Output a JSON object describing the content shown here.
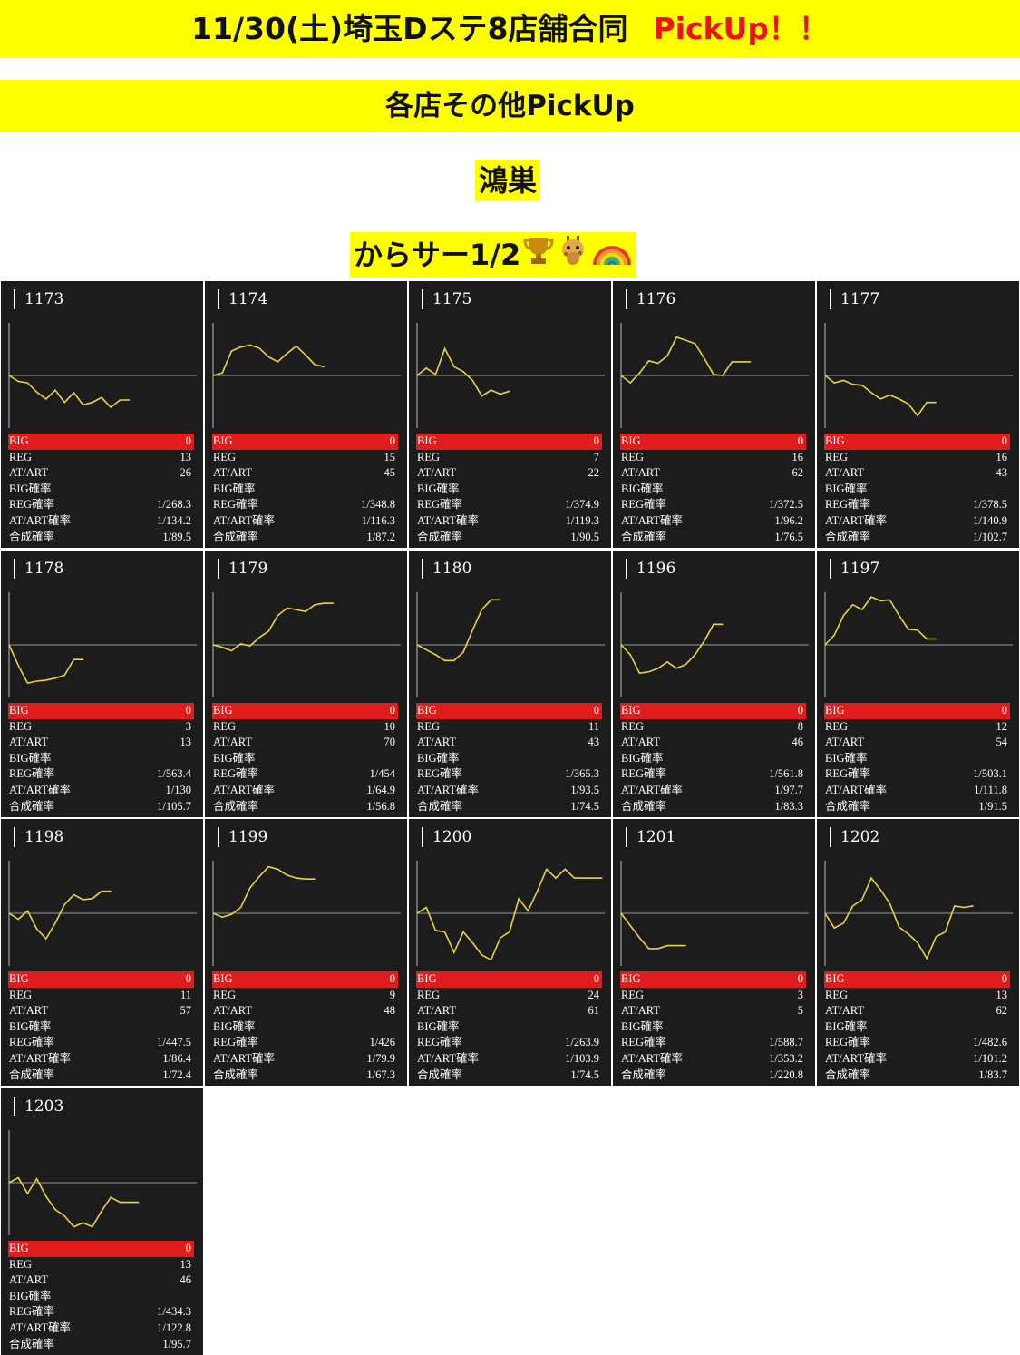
{
  "header": {
    "title": "11/30(土)埼玉Dステ8店舗合同",
    "pickup": "PickUp！！",
    "subtitle": "各店その他PickUp",
    "store": "鴻巣",
    "machine": "からサー1/2",
    "icons": [
      "trophy-icon",
      "giraffe-icon",
      "rainbow-icon"
    ]
  },
  "colors": {
    "banner": "#ffff00",
    "pickup": "#ee1111",
    "panel_bg": "#1c1c1c",
    "big_row": "#e01c1c",
    "line": "#e8d44a",
    "baseline": "#9a9a9a"
  },
  "labels": {
    "big": "BIG",
    "reg": "REG",
    "at": "AT/ART",
    "big_rate": "BIG確率",
    "reg_rate": "REG確率",
    "at_rate": "AT/ART確率",
    "total_rate": "合成確率"
  },
  "chart_data": [
    {
      "type": "line",
      "machine": "1173",
      "big": "0",
      "reg": "13",
      "at": "26",
      "big_rate": "",
      "reg_rate": "1/268.3",
      "at_rate": "1/134.2",
      "total_rate": "1/89.5",
      "ylim": [
        -1,
        1
      ],
      "x": [
        0,
        1,
        2,
        3,
        4,
        5,
        6,
        7,
        8,
        9,
        10,
        11,
        12,
        13
      ],
      "y": [
        0,
        -0.12,
        -0.15,
        -0.34,
        -0.48,
        -0.3,
        -0.55,
        -0.35,
        -0.6,
        -0.55,
        -0.45,
        -0.65,
        -0.5,
        -0.5
      ]
    },
    {
      "type": "line",
      "machine": "1174",
      "big": "0",
      "reg": "15",
      "at": "45",
      "big_rate": "",
      "reg_rate": "1/348.8",
      "at_rate": "1/116.3",
      "total_rate": "1/87.2",
      "ylim": [
        -1,
        1
      ],
      "x": [
        0,
        1,
        2,
        3,
        4,
        5,
        6,
        7,
        8,
        9,
        10,
        11,
        12
      ],
      "y": [
        0,
        0.05,
        0.5,
        0.58,
        0.62,
        0.56,
        0.38,
        0.28,
        0.45,
        0.6,
        0.42,
        0.22,
        0.18
      ]
    },
    {
      "type": "line",
      "machine": "1175",
      "big": "0",
      "reg": "7",
      "at": "22",
      "big_rate": "",
      "reg_rate": "1/374.9",
      "at_rate": "1/119.3",
      "total_rate": "1/90.5",
      "ylim": [
        -1,
        1
      ],
      "x": [
        0,
        1,
        2,
        3,
        4,
        5,
        6,
        7,
        8,
        9,
        10
      ],
      "y": [
        0,
        0.15,
        0.02,
        0.55,
        0.18,
        0.08,
        -0.1,
        -0.42,
        -0.3,
        -0.38,
        -0.32
      ]
    },
    {
      "type": "line",
      "machine": "1176",
      "big": "0",
      "reg": "16",
      "at": "62",
      "big_rate": "",
      "reg_rate": "1/372.5",
      "at_rate": "1/96.2",
      "total_rate": "1/76.5",
      "ylim": [
        -1,
        1
      ],
      "x": [
        0,
        1,
        2,
        3,
        4,
        5,
        6,
        7,
        8,
        9,
        10,
        11,
        12,
        13,
        14
      ],
      "y": [
        0,
        -0.15,
        0.05,
        0.3,
        0.25,
        0.4,
        0.78,
        0.72,
        0.65,
        0.35,
        0.02,
        0.0,
        0.28,
        0.28,
        0.28
      ]
    },
    {
      "type": "line",
      "machine": "1177",
      "big": "0",
      "reg": "16",
      "at": "43",
      "big_rate": "",
      "reg_rate": "1/378.5",
      "at_rate": "1/140.9",
      "total_rate": "1/102.7",
      "ylim": [
        -1,
        1
      ],
      "x": [
        0,
        1,
        2,
        3,
        4,
        5,
        6,
        7,
        8,
        9,
        10,
        11,
        12
      ],
      "y": [
        0,
        -0.15,
        -0.1,
        -0.18,
        -0.2,
        -0.35,
        -0.48,
        -0.4,
        -0.48,
        -0.58,
        -0.82,
        -0.55,
        -0.55
      ]
    },
    {
      "type": "line",
      "machine": "1178",
      "big": "0",
      "reg": "3",
      "at": "13",
      "big_rate": "",
      "reg_rate": "1/563.4",
      "at_rate": "1/130",
      "total_rate": "1/105.7",
      "ylim": [
        -1,
        1
      ],
      "x": [
        0,
        1,
        2,
        3,
        4,
        5,
        6,
        7,
        8
      ],
      "y": [
        0,
        -0.42,
        -0.78,
        -0.74,
        -0.72,
        -0.68,
        -0.62,
        -0.3,
        -0.3
      ]
    },
    {
      "type": "line",
      "machine": "1179",
      "big": "0",
      "reg": "10",
      "at": "70",
      "big_rate": "",
      "reg_rate": "1/454",
      "at_rate": "1/64.9",
      "total_rate": "1/56.8",
      "ylim": [
        -1,
        1
      ],
      "x": [
        0,
        1,
        2,
        3,
        4,
        5,
        6,
        7,
        8,
        9,
        10,
        11,
        12,
        13
      ],
      "y": [
        0,
        -0.05,
        -0.12,
        0.02,
        -0.02,
        0.15,
        0.28,
        0.6,
        0.75,
        0.72,
        0.68,
        0.82,
        0.85,
        0.85
      ]
    },
    {
      "type": "line",
      "machine": "1180",
      "big": "0",
      "reg": "11",
      "at": "43",
      "big_rate": "",
      "reg_rate": "1/365.3",
      "at_rate": "1/93.5",
      "total_rate": "1/74.5",
      "ylim": [
        -1,
        1
      ],
      "x": [
        0,
        1,
        2,
        3,
        4,
        5,
        6,
        7,
        8,
        9
      ],
      "y": [
        0,
        -0.1,
        -0.2,
        -0.32,
        -0.32,
        -0.15,
        0.3,
        0.72,
        0.92,
        0.92
      ]
    },
    {
      "type": "line",
      "machine": "1196",
      "big": "0",
      "reg": "8",
      "at": "46",
      "big_rate": "",
      "reg_rate": "1/561.8",
      "at_rate": "1/97.7",
      "total_rate": "1/83.3",
      "ylim": [
        -1,
        1
      ],
      "x": [
        0,
        1,
        2,
        3,
        4,
        5,
        6,
        7,
        8,
        9,
        10,
        11
      ],
      "y": [
        0,
        -0.2,
        -0.58,
        -0.55,
        -0.48,
        -0.35,
        -0.48,
        -0.4,
        -0.2,
        0.08,
        0.42,
        0.42
      ]
    },
    {
      "type": "line",
      "machine": "1197",
      "big": "0",
      "reg": "12",
      "at": "54",
      "big_rate": "",
      "reg_rate": "1/503.1",
      "at_rate": "1/111.8",
      "total_rate": "1/91.5",
      "ylim": [
        -1,
        1
      ],
      "x": [
        0,
        1,
        2,
        3,
        4,
        5,
        6,
        7,
        8,
        9,
        10,
        11,
        12
      ],
      "y": [
        0,
        0.2,
        0.6,
        0.82,
        0.72,
        0.98,
        0.9,
        0.92,
        0.6,
        0.32,
        0.3,
        0.12,
        0.12
      ]
    },
    {
      "type": "line",
      "machine": "1198",
      "big": "0",
      "reg": "11",
      "at": "57",
      "big_rate": "",
      "reg_rate": "1/447.5",
      "at_rate": "1/86.4",
      "total_rate": "1/72.4",
      "ylim": [
        -1,
        1
      ],
      "x": [
        0,
        1,
        2,
        3,
        4,
        5,
        6,
        7,
        8,
        9,
        10,
        11
      ],
      "y": [
        0,
        -0.12,
        0.05,
        -0.32,
        -0.52,
        -0.2,
        0.18,
        0.38,
        0.28,
        0.3,
        0.45,
        0.45
      ]
    },
    {
      "type": "line",
      "machine": "1199",
      "big": "0",
      "reg": "9",
      "at": "48",
      "big_rate": "",
      "reg_rate": "1/426",
      "at_rate": "1/79.9",
      "total_rate": "1/67.3",
      "ylim": [
        -1,
        1
      ],
      "x": [
        0,
        1,
        2,
        3,
        4,
        5,
        6,
        7,
        8,
        9,
        10,
        11
      ],
      "y": [
        0,
        -0.08,
        -0.02,
        0.12,
        0.52,
        0.75,
        0.95,
        0.9,
        0.78,
        0.72,
        0.7,
        0.7
      ]
    },
    {
      "type": "line",
      "machine": "1200",
      "big": "0",
      "reg": "24",
      "at": "61",
      "big_rate": "",
      "reg_rate": "1/263.9",
      "at_rate": "1/103.9",
      "total_rate": "1/74.5",
      "ylim": [
        -1,
        1
      ],
      "x": [
        0,
        1,
        2,
        3,
        4,
        5,
        6,
        7,
        8,
        9,
        10,
        11,
        12,
        13,
        14,
        15,
        16,
        17,
        18,
        19,
        20
      ],
      "y": [
        0,
        0.12,
        -0.35,
        -0.38,
        -0.8,
        -0.38,
        -0.6,
        -0.85,
        -0.95,
        -0.5,
        -0.38,
        0.3,
        0.05,
        0.45,
        0.9,
        0.72,
        0.9,
        0.72,
        0.72,
        0.72,
        0.72
      ]
    },
    {
      "type": "line",
      "machine": "1201",
      "big": "0",
      "reg": "3",
      "at": "5",
      "big_rate": "",
      "reg_rate": "1/588.7",
      "at_rate": "1/353.2",
      "total_rate": "1/220.8",
      "ylim": [
        -1,
        1
      ],
      "x": [
        0,
        1,
        2,
        3,
        4,
        5,
        6,
        7
      ],
      "y": [
        0,
        -0.25,
        -0.5,
        -0.72,
        -0.72,
        -0.66,
        -0.66,
        -0.66
      ]
    },
    {
      "type": "line",
      "machine": "1202",
      "big": "0",
      "reg": "13",
      "at": "62",
      "big_rate": "",
      "reg_rate": "1/482.6",
      "at_rate": "1/101.2",
      "total_rate": "1/83.7",
      "ylim": [
        -1,
        1
      ],
      "x": [
        0,
        1,
        2,
        3,
        4,
        5,
        6,
        7,
        8,
        9,
        10,
        11,
        12,
        13,
        14,
        15,
        16
      ],
      "y": [
        0,
        -0.3,
        -0.2,
        0.15,
        0.28,
        0.72,
        0.48,
        0.2,
        -0.28,
        -0.42,
        -0.6,
        -0.92,
        -0.48,
        -0.38,
        0.15,
        0.12,
        0.15
      ]
    },
    {
      "type": "line",
      "machine": "1203",
      "big": "0",
      "reg": "13",
      "at": "46",
      "big_rate": "",
      "reg_rate": "1/434.3",
      "at_rate": "1/122.8",
      "total_rate": "1/95.7",
      "ylim": [
        -1,
        1
      ],
      "x": [
        0,
        1,
        2,
        3,
        4,
        5,
        6,
        7,
        8,
        9,
        10,
        11,
        12,
        13,
        14
      ],
      "y": [
        0,
        0.1,
        -0.22,
        0.08,
        -0.28,
        -0.55,
        -0.68,
        -0.9,
        -0.82,
        -0.9,
        -0.58,
        -0.3,
        -0.4,
        -0.4,
        -0.4
      ]
    }
  ]
}
